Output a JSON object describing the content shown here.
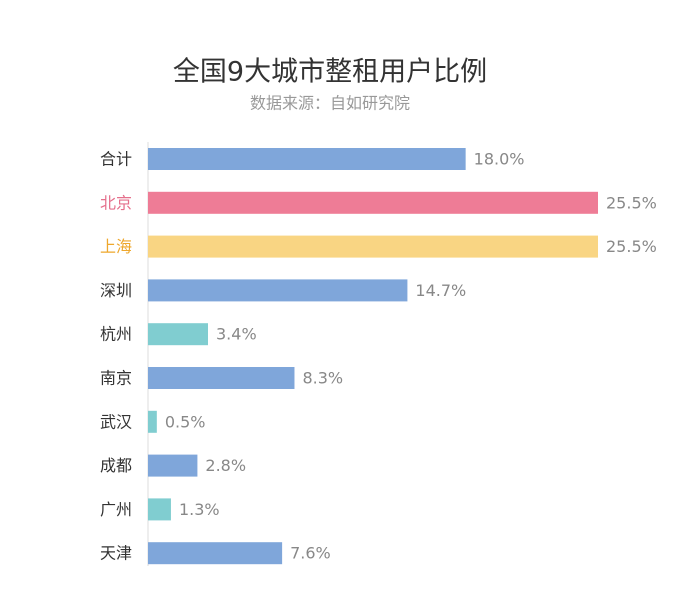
{
  "chart_data": {
    "type": "hbar",
    "title": "全国9大城市整租用户比例",
    "subtitle": "数据来源：自如研究院",
    "categories": [
      "合计",
      "北京",
      "上海",
      "深圳",
      "杭州",
      "南京",
      "武汉",
      "成都",
      "广州",
      "天津"
    ],
    "values": [
      18.0,
      25.5,
      25.5,
      14.7,
      3.4,
      8.3,
      0.5,
      2.8,
      1.3,
      7.6
    ],
    "value_labels": [
      "18.0%",
      "25.5%",
      "25.5%",
      "14.7%",
      "3.4%",
      "8.3%",
      "0.5%",
      "2.8%",
      "1.3%",
      "7.6%"
    ],
    "colors": [
      "#7fa6da",
      "#ee7c96",
      "#f9d583",
      "#7fa6da",
      "#80cdd0",
      "#7fa6da",
      "#80cdd0",
      "#7fa6da",
      "#80cdd0",
      "#7fa6da"
    ],
    "label_colors": [
      "#333333",
      "#e5708c",
      "#eea72c",
      "#333333",
      "#333333",
      "#333333",
      "#333333",
      "#333333",
      "#333333",
      "#333333"
    ]
  }
}
